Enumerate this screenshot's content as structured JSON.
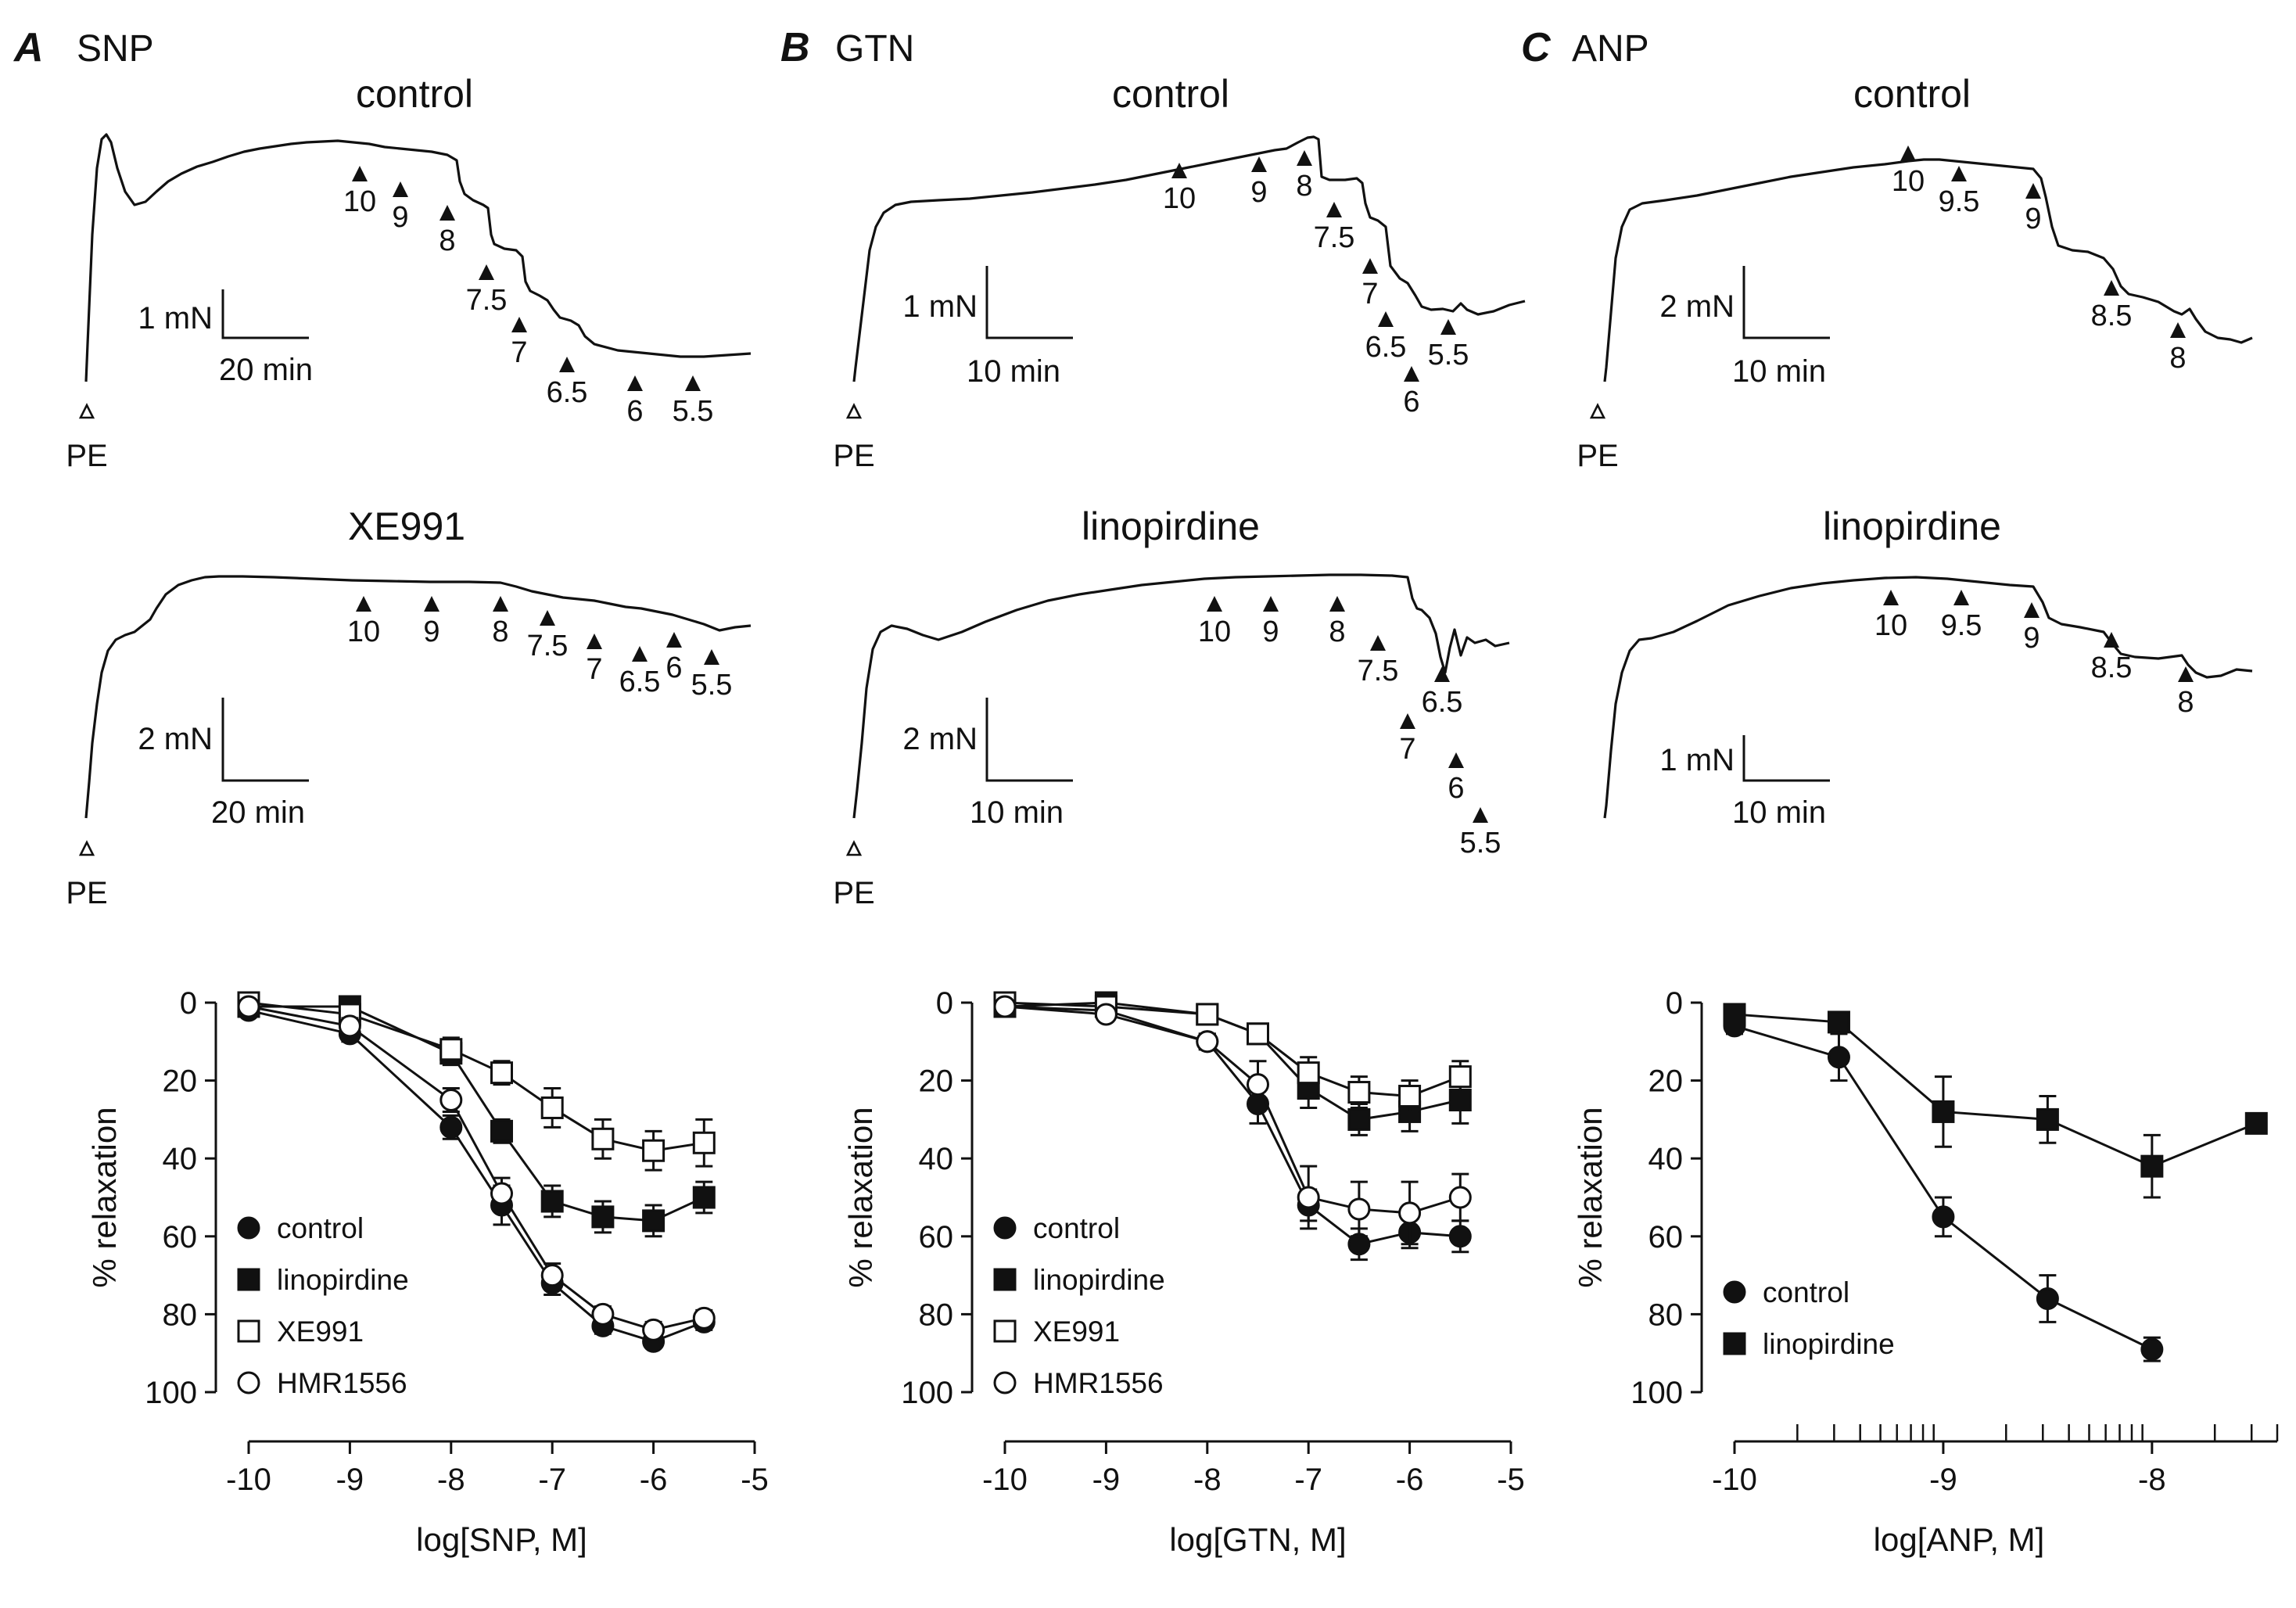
{
  "figure": {
    "panels": [
      {
        "letter": "A",
        "agent": "SNP",
        "traces": [
          {
            "condition": "control",
            "scale_force": "1 mN",
            "scale_time": "20 min",
            "start_label": "PE",
            "additions": [
              "10",
              "9",
              "8",
              "7.5",
              "7",
              "6.5",
              "6",
              "5.5"
            ]
          },
          {
            "condition": "XE991",
            "scale_force": "2 mN",
            "scale_time": "20 min",
            "start_label": "PE",
            "additions": [
              "10",
              "9",
              "8",
              "7.5",
              "7",
              "6.5",
              "6",
              "5.5"
            ]
          }
        ]
      },
      {
        "letter": "B",
        "agent": "GTN",
        "traces": [
          {
            "condition": "control",
            "scale_force": "1 mN",
            "scale_time": "10 min",
            "start_label": "PE",
            "additions": [
              "10",
              "9",
              "8",
              "7.5",
              "7",
              "6.5",
              "6",
              "5.5"
            ]
          },
          {
            "condition": "linopirdine",
            "scale_force": "2 mN",
            "scale_time": "10 min",
            "start_label": "PE",
            "additions": [
              "10",
              "9",
              "8",
              "7.5",
              "6.5",
              "7",
              "6",
              "5.5"
            ]
          }
        ]
      },
      {
        "letter": "C",
        "agent": "ANP",
        "traces": [
          {
            "condition": "control",
            "scale_force": "2 mN",
            "scale_time": "10 min",
            "start_label": "PE",
            "additions": [
              "10",
              "9.5",
              "9",
              "8.5",
              "8"
            ]
          },
          {
            "condition": "linopirdine",
            "scale_force": "1 mN",
            "scale_time": "10 min",
            "additions": [
              "10",
              "9.5",
              "9",
              "8.5",
              "8"
            ]
          }
        ]
      }
    ]
  },
  "chart_data": [
    {
      "type": "scatter",
      "title": "SNP",
      "xlabel": "log[SNP,  M]",
      "ylabel": "% relaxation",
      "xlim": [
        -10,
        -5
      ],
      "ylim": [
        0,
        100
      ],
      "y_inverted": true,
      "x_ticks": [
        "-10",
        "-9",
        "-8",
        "-7",
        "-6",
        "-5"
      ],
      "y_ticks": [
        "0",
        "20",
        "40",
        "60",
        "80",
        "100"
      ],
      "legend_position": "bottom-left",
      "series": [
        {
          "name": "control",
          "marker": "filled-circle",
          "x": [
            -10,
            -9,
            -8,
            -7.5,
            -7,
            -6.5,
            -6,
            -5.5
          ],
          "y": [
            2,
            8,
            32,
            52,
            72,
            83,
            87,
            82
          ],
          "err": [
            1,
            2,
            3,
            5,
            3,
            2,
            1,
            2
          ]
        },
        {
          "name": "linopirdine",
          "marker": "filled-square",
          "x": [
            -10,
            -9,
            -8,
            -7.5,
            -7,
            -6.5,
            -6,
            -5.5
          ],
          "y": [
            1,
            1,
            13,
            33,
            51,
            55,
            56,
            50
          ],
          "err": [
            1,
            1,
            3,
            3,
            4,
            4,
            4,
            4
          ]
        },
        {
          "name": "XE991",
          "marker": "open-square",
          "x": [
            -10,
            -9,
            -8,
            -7.5,
            -7,
            -6.5,
            -6,
            -5.5
          ],
          "y": [
            0,
            3,
            12,
            18,
            27,
            35,
            38,
            36
          ],
          "err": [
            1,
            1,
            3,
            3,
            5,
            5,
            5,
            6
          ]
        },
        {
          "name": "HMR1556",
          "marker": "open-circle",
          "x": [
            -10,
            -9,
            -8,
            -7.5,
            -7,
            -6.5,
            -6,
            -5.5
          ],
          "y": [
            1,
            6,
            25,
            49,
            70,
            80,
            84,
            81
          ],
          "err": [
            1,
            2,
            3,
            4,
            3,
            2,
            2,
            2
          ]
        }
      ]
    },
    {
      "type": "scatter",
      "title": "GTN",
      "xlabel": "log[GTN,  M]",
      "ylabel": "% relaxation",
      "xlim": [
        -10,
        -5
      ],
      "ylim": [
        0,
        100
      ],
      "y_inverted": true,
      "x_ticks": [
        "-10",
        "-9",
        "-8",
        "-7",
        "-6",
        "-5"
      ],
      "y_ticks": [
        "0",
        "20",
        "40",
        "60",
        "80",
        "100"
      ],
      "legend_position": "bottom-left",
      "series": [
        {
          "name": "control",
          "marker": "filled-circle",
          "x": [
            -10,
            -9,
            -8,
            -7.5,
            -7,
            -6.5,
            -6,
            -5.5
          ],
          "y": [
            1,
            2,
            10,
            26,
            52,
            62,
            59,
            60
          ],
          "err": [
            1,
            1,
            2,
            5,
            4,
            4,
            4,
            4
          ]
        },
        {
          "name": "linopirdine",
          "marker": "filled-square",
          "x": [
            -10,
            -9,
            -8,
            -7.5,
            -7,
            -6.5,
            -6,
            -5.5
          ],
          "y": [
            1,
            0,
            3,
            8,
            22,
            30,
            28,
            25
          ],
          "err": [
            1,
            1,
            1,
            2,
            5,
            4,
            5,
            6
          ]
        },
        {
          "name": "XE991",
          "marker": "open-square",
          "x": [
            -10,
            -9,
            -8,
            -7.5,
            -7,
            -6.5,
            -6,
            -5.5
          ],
          "y": [
            0,
            1,
            3,
            8,
            18,
            23,
            24,
            19
          ],
          "err": [
            1,
            1,
            1,
            2,
            4,
            4,
            4,
            4
          ]
        },
        {
          "name": "HMR1556",
          "marker": "open-circle",
          "x": [
            -10,
            -9,
            -8,
            -7.5,
            -7,
            -6.5,
            -6,
            -5.5
          ],
          "y": [
            1,
            3,
            10,
            21,
            50,
            53,
            54,
            50
          ],
          "err": [
            1,
            1,
            2,
            6,
            8,
            7,
            8,
            6
          ]
        }
      ]
    },
    {
      "type": "scatter",
      "title": "ANP",
      "xlabel": "log[ANP,  M]",
      "ylabel": "% relaxation",
      "xlim": [
        -10,
        -7.4
      ],
      "ylim": [
        0,
        100
      ],
      "y_inverted": true,
      "x_ticks": [
        "-10",
        "-9",
        "-8"
      ],
      "x_scale_note": "log-style minor ticks",
      "y_ticks": [
        "0",
        "20",
        "40",
        "60",
        "80",
        "100"
      ],
      "legend_position": "bottom-left",
      "series": [
        {
          "name": "control",
          "marker": "filled-circle",
          "x": [
            -10,
            -9.5,
            -9,
            -8.5,
            -8
          ],
          "y": [
            6,
            14,
            55,
            76,
            89
          ],
          "err": [
            2,
            6,
            5,
            6,
            3
          ]
        },
        {
          "name": "linopirdine",
          "marker": "filled-square",
          "x": [
            -10,
            -9.5,
            -9,
            -8.5,
            -8,
            -7.5
          ],
          "y": [
            3,
            5,
            28,
            30,
            42,
            31
          ],
          "err": [
            1,
            2,
            9,
            6,
            8,
            2
          ]
        }
      ]
    }
  ]
}
